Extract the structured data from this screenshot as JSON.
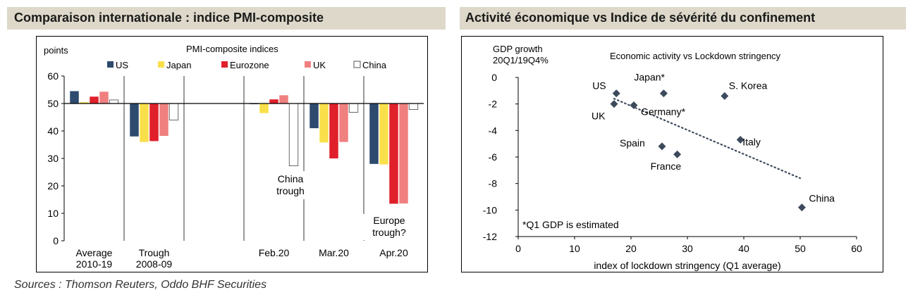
{
  "left": {
    "panel_title": "Comparaison internationale : indice PMI-composite",
    "chart_data": {
      "type": "bar",
      "title": "PMI-composite indices",
      "ylabel": "points",
      "ylim": [
        0,
        60
      ],
      "yticks": [
        0,
        10,
        20,
        30,
        40,
        50,
        60
      ],
      "reference_line": 50,
      "categories": [
        "Average 2010-19",
        "Trough 2008-09",
        "Feb.20",
        "Mar.20",
        "Apr.20"
      ],
      "category_lines": [
        [
          "Average",
          "2010-19"
        ],
        [
          "Trough",
          "2008-09"
        ],
        [
          "",
          ""
        ],
        [
          "Feb.20",
          ""
        ],
        [
          "Mar.20",
          ""
        ],
        [
          "Apr.20",
          ""
        ]
      ],
      "series": [
        {
          "name": "US",
          "color": "#2e4a6e",
          "values": [
            54.5,
            38,
            49.8,
            41,
            28
          ]
        },
        {
          "name": "Japan",
          "color": "#f9e04b",
          "values": [
            50.5,
            36,
            46.5,
            35.8,
            27.8
          ]
        },
        {
          "name": "Eurozone",
          "color": "#e0202a",
          "values": [
            52.5,
            36.3,
            51.5,
            30,
            13.5
          ]
        },
        {
          "name": "UK",
          "color": "#f08080",
          "values": [
            54.3,
            38.2,
            53,
            36,
            13.6
          ]
        },
        {
          "name": "China",
          "color": "#ffffff",
          "values": [
            51.3,
            44,
            27.3,
            46.8,
            47.8
          ]
        }
      ],
      "annotations": [
        {
          "lines": [
            "China",
            "trough"
          ]
        },
        {
          "lines": [
            "Europe",
            "trough?"
          ]
        }
      ]
    }
  },
  "right": {
    "panel_title": "Activité économique vs Indice de sévérité du confinement",
    "chart_data": {
      "type": "scatter",
      "title": "Economic activity vs Lockdown stringency",
      "ylabel_lines": [
        "GDP growth",
        "20Q1/19Q4%"
      ],
      "xlabel": "index of lockdown stringency  (Q1 average)",
      "xlim": [
        0,
        60
      ],
      "ylim": [
        -12,
        0
      ],
      "xticks": [
        0,
        10,
        20,
        30,
        40,
        50,
        60
      ],
      "yticks": [
        0,
        -2,
        -4,
        -6,
        -8,
        -10,
        -12
      ],
      "marker_color": "#3d4a5c",
      "points": [
        {
          "label": "US",
          "x": 17.4,
          "y": -1.2
        },
        {
          "label": "Japan*",
          "x": 25.8,
          "y": -1.2
        },
        {
          "label": "S. Korea",
          "x": 36.6,
          "y": -1.4
        },
        {
          "label": "UK",
          "x": 17,
          "y": -2
        },
        {
          "label": "Germany*",
          "x": 20.5,
          "y": -2.1
        },
        {
          "label": "Italy",
          "x": 39.4,
          "y": -4.7
        },
        {
          "label": "Spain",
          "x": 25.5,
          "y": -5.2
        },
        {
          "label": "France",
          "x": 28.2,
          "y": -5.8
        },
        {
          "label": "China",
          "x": 50.3,
          "y": -9.8
        }
      ],
      "trendline": {
        "x": [
          17,
          50
        ],
        "y": [
          -1.6,
          -7.6
        ]
      },
      "note": "*Q1 GDP is estimated"
    }
  },
  "sources": "Sources : Thomson Reuters, Oddo BHF Securities"
}
